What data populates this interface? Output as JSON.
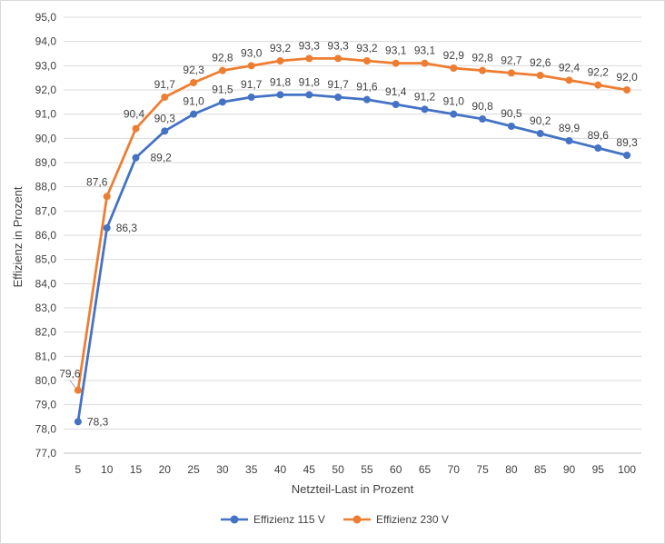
{
  "chart_data": {
    "type": "line",
    "xlabel": "Netzteil-Last in Prozent",
    "ylabel": "Effizienz in Prozent",
    "ylim": [
      77.0,
      95.0
    ],
    "y_ticks": [
      "77,0",
      "78,0",
      "79,0",
      "80,0",
      "81,0",
      "82,0",
      "83,0",
      "84,0",
      "85,0",
      "86,0",
      "87,0",
      "88,0",
      "89,0",
      "90,0",
      "91,0",
      "92,0",
      "93,0",
      "94,0",
      "95,0"
    ],
    "x": [
      5,
      10,
      15,
      20,
      25,
      30,
      35,
      40,
      45,
      50,
      55,
      60,
      65,
      70,
      75,
      80,
      85,
      90,
      95,
      100
    ],
    "x_tick_labels": [
      "5",
      "10",
      "15",
      "20",
      "25",
      "30",
      "35",
      "40",
      "45",
      "50",
      "55",
      "60",
      "65",
      "70",
      "75",
      "80",
      "85",
      "90",
      "95",
      "100"
    ],
    "grid": "horizontal",
    "legend_position": "bottom",
    "series": [
      {
        "name": "Effizienz 115 V",
        "color": "#4472c4",
        "values": [
          78.3,
          86.3,
          89.2,
          90.3,
          91.0,
          91.5,
          91.7,
          91.8,
          91.8,
          91.7,
          91.6,
          91.4,
          91.2,
          91.0,
          90.8,
          90.5,
          90.2,
          89.9,
          89.6,
          89.3
        ],
        "labels": [
          "78,3",
          "86,3",
          "89,2",
          "90,3",
          "91,0",
          "91,5",
          "91,7",
          "91,8",
          "91,8",
          "91,7",
          "91,6",
          "91,4",
          "91,2",
          "91,0",
          "90,8",
          "90,5",
          "90,2",
          "89,9",
          "89,6",
          "89,3"
        ]
      },
      {
        "name": "Effizienz 230 V",
        "color": "#ed7d31",
        "values": [
          79.6,
          87.6,
          90.4,
          91.7,
          92.3,
          92.8,
          93.0,
          93.2,
          93.3,
          93.3,
          93.2,
          93.1,
          93.1,
          92.9,
          92.8,
          92.7,
          92.6,
          92.4,
          92.2,
          92.0
        ],
        "labels": [
          "79,6",
          "87,6",
          "90,4",
          "91,7",
          "92,3",
          "92,8",
          "93,0",
          "93,2",
          "93,3",
          "93,3",
          "93,2",
          "93,1",
          "93,1",
          "92,9",
          "92,8",
          "92,7",
          "92,6",
          "92,4",
          "92,2",
          "92,0"
        ]
      }
    ]
  }
}
